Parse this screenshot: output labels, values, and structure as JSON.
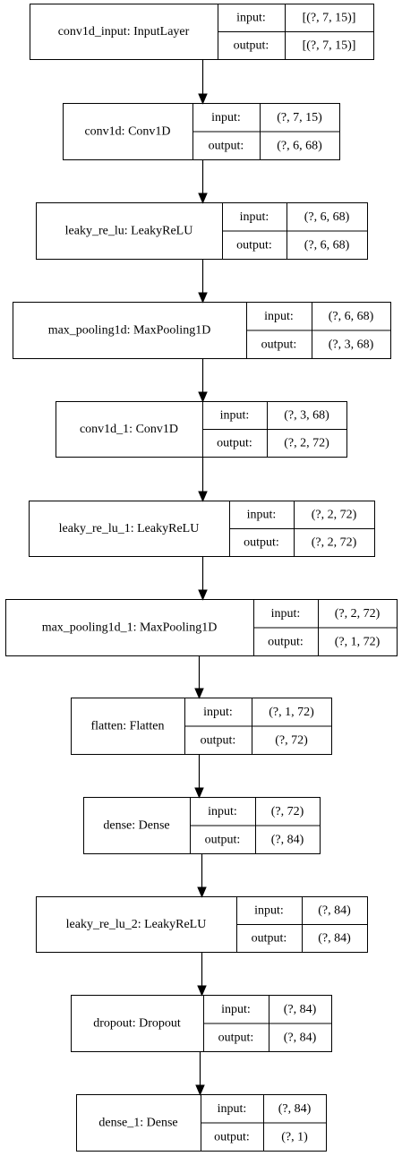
{
  "diagram": {
    "layers": [
      {
        "label": "conv1d_input: InputLayer",
        "input_label": "input:",
        "input_shape": "[(?, 7, 15)]",
        "output_label": "output:",
        "output_shape": "[(?, 7, 15)]"
      },
      {
        "label": "conv1d: Conv1D",
        "input_label": "input:",
        "input_shape": "(?, 7, 15)",
        "output_label": "output:",
        "output_shape": "(?, 6, 68)"
      },
      {
        "label": "leaky_re_lu: LeakyReLU",
        "input_label": "input:",
        "input_shape": "(?, 6, 68)",
        "output_label": "output:",
        "output_shape": "(?, 6, 68)"
      },
      {
        "label": "max_pooling1d: MaxPooling1D",
        "input_label": "input:",
        "input_shape": "(?, 6, 68)",
        "output_label": "output:",
        "output_shape": "(?, 3, 68)"
      },
      {
        "label": "conv1d_1: Conv1D",
        "input_label": "input:",
        "input_shape": "(?, 3, 68)",
        "output_label": "output:",
        "output_shape": "(?, 2, 72)"
      },
      {
        "label": "leaky_re_lu_1: LeakyReLU",
        "input_label": "input:",
        "input_shape": "(?, 2, 72)",
        "output_label": "output:",
        "output_shape": "(?, 2, 72)"
      },
      {
        "label": "max_pooling1d_1: MaxPooling1D",
        "input_label": "input:",
        "input_shape": "(?, 2, 72)",
        "output_label": "output:",
        "output_shape": "(?, 1, 72)"
      },
      {
        "label": "flatten: Flatten",
        "input_label": "input:",
        "input_shape": "(?, 1, 72)",
        "output_label": "output:",
        "output_shape": "(?, 72)"
      },
      {
        "label": "dense: Dense",
        "input_label": "input:",
        "input_shape": "(?, 72)",
        "output_label": "output:",
        "output_shape": "(?, 84)"
      },
      {
        "label": "leaky_re_lu_2: LeakyReLU",
        "input_label": "input:",
        "input_shape": "(?, 84)",
        "output_label": "output:",
        "output_shape": "(?, 84)"
      },
      {
        "label": "dropout: Dropout",
        "input_label": "input:",
        "input_shape": "(?, 84)",
        "output_label": "output:",
        "output_shape": "(?, 84)"
      },
      {
        "label": "dense_1: Dense",
        "input_label": "input:",
        "input_shape": "(?, 84)",
        "output_label": "output:",
        "output_shape": "(?, 1)"
      }
    ],
    "edges": [
      {
        "from": 0,
        "to": 1
      },
      {
        "from": 1,
        "to": 2
      },
      {
        "from": 2,
        "to": 3
      },
      {
        "from": 3,
        "to": 4
      },
      {
        "from": 4,
        "to": 5
      },
      {
        "from": 5,
        "to": 6
      },
      {
        "from": 6,
        "to": 7
      },
      {
        "from": 7,
        "to": 8
      },
      {
        "from": 8,
        "to": 9
      },
      {
        "from": 9,
        "to": 10
      },
      {
        "from": 10,
        "to": 11
      }
    ]
  }
}
